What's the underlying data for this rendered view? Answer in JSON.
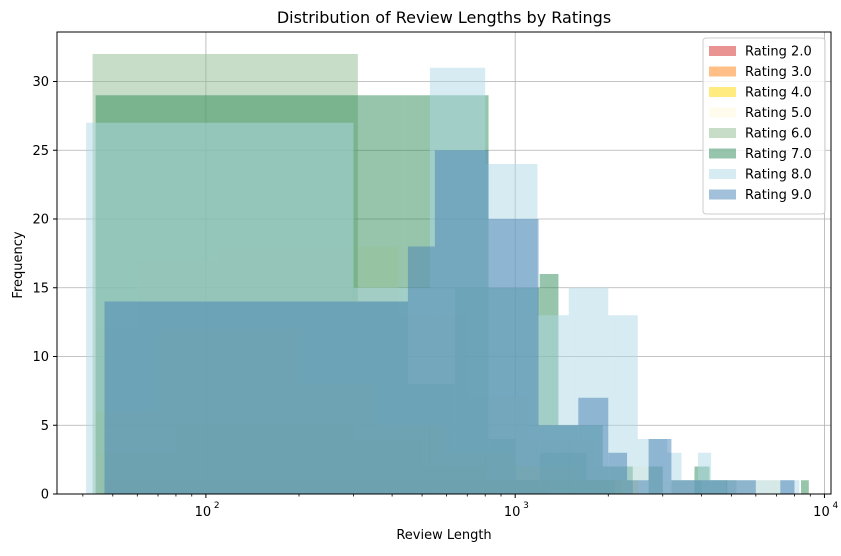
{
  "chart_data": {
    "type": "bar",
    "title": "Distribution of Review Lengths by Ratings",
    "xlabel": "Review Length",
    "ylabel": "Frequency",
    "xscale": "log",
    "xlim": [
      33,
      10500
    ],
    "ylim": [
      0,
      33.6
    ],
    "grid": true,
    "legend_position": "top-right",
    "x_ticks": [
      {
        "value": 100,
        "base": "10",
        "exp": "2"
      },
      {
        "value": 1000,
        "base": "10",
        "exp": "3"
      },
      {
        "value": 10000,
        "base": "10",
        "exp": "4"
      }
    ],
    "y_ticks": [
      0,
      5,
      10,
      15,
      20,
      25,
      30
    ],
    "series": [
      {
        "name": "Rating 2.0",
        "color": "#d62728",
        "alpha": 0.5,
        "bins": [
          [
            46,
            120,
            1
          ],
          [
            120,
            300,
            1
          ],
          [
            300,
            800,
            1
          ],
          [
            800,
            1300,
            1
          ]
        ]
      },
      {
        "name": "Rating 3.0",
        "color": "#ff7f0e",
        "alpha": 0.5,
        "bins": [
          [
            45,
            80,
            3
          ],
          [
            80,
            150,
            5
          ],
          [
            150,
            300,
            5
          ],
          [
            300,
            500,
            4
          ],
          [
            500,
            800,
            2
          ],
          [
            800,
            1300,
            1
          ],
          [
            1300,
            2200,
            1
          ]
        ]
      },
      {
        "name": "Rating 4.0",
        "color": "#ffd700",
        "alpha": 0.5,
        "bins": [
          [
            44,
            70,
            6
          ],
          [
            70,
            120,
            12
          ],
          [
            120,
            200,
            12
          ],
          [
            200,
            350,
            8
          ],
          [
            350,
            600,
            5
          ],
          [
            600,
            1000,
            3
          ],
          [
            1000,
            1600,
            2
          ],
          [
            1600,
            2500,
            1
          ]
        ]
      },
      {
        "name": "Rating 5.0",
        "color": "#fff8dc",
        "alpha": 0.5,
        "bins": [
          [
            44,
            60,
            12
          ],
          [
            60,
            110,
            17
          ],
          [
            110,
            190,
            18
          ],
          [
            190,
            420,
            18
          ],
          [
            420,
            700,
            13
          ],
          [
            700,
            1100,
            7
          ],
          [
            1100,
            1800,
            4
          ],
          [
            1800,
            3000,
            2
          ],
          [
            3000,
            5000,
            1
          ],
          [
            5000,
            7000,
            1
          ],
          [
            6800,
            7300,
            1
          ]
        ]
      },
      {
        "name": "Rating 6.0",
        "color": "#8fbc8f",
        "alpha": 0.5,
        "bins": [
          [
            43,
            310,
            32
          ],
          [
            310,
            450,
            14
          ],
          [
            450,
            640,
            8
          ],
          [
            640,
            820,
            15
          ],
          [
            820,
            1000,
            4
          ],
          [
            1000,
            1200,
            1
          ],
          [
            1200,
            1700,
            3
          ],
          [
            1700,
            2100,
            1
          ],
          [
            3200,
            4000,
            1
          ],
          [
            4800,
            5200,
            1
          ]
        ]
      },
      {
        "name": "Rating 7.0",
        "color": "#2e8b57",
        "alpha": 0.5,
        "bins": [
          [
            44,
            440,
            29
          ],
          [
            440,
            820,
            29
          ],
          [
            820,
            1200,
            15
          ],
          [
            1200,
            1380,
            16
          ],
          [
            1380,
            1920,
            5
          ],
          [
            1920,
            2400,
            2
          ],
          [
            2700,
            3000,
            2
          ],
          [
            3800,
            4250,
            2
          ],
          [
            4250,
            4850,
            1
          ],
          [
            8400,
            8900,
            1
          ]
        ]
      },
      {
        "name": "Rating 8.0",
        "color": "#add8e6",
        "alpha": 0.5,
        "bins": [
          [
            41,
            300,
            27
          ],
          [
            300,
            530,
            15
          ],
          [
            530,
            800,
            31
          ],
          [
            800,
            1180,
            24
          ],
          [
            1180,
            1490,
            13
          ],
          [
            1490,
            2000,
            15
          ],
          [
            2000,
            2490,
            13
          ],
          [
            2490,
            3100,
            4
          ],
          [
            3100,
            3450,
            3
          ],
          [
            3450,
            3900,
            1
          ],
          [
            3900,
            4300,
            3
          ],
          [
            4300,
            5200,
            1
          ],
          [
            5200,
            5900,
            1
          ],
          [
            5900,
            7000,
            1
          ],
          [
            7000,
            7600,
            1
          ],
          [
            7600,
            8300,
            1
          ]
        ]
      },
      {
        "name": "Rating 9.0",
        "color": "#4682b4",
        "alpha": 0.5,
        "bins": [
          [
            47,
            450,
            14
          ],
          [
            450,
            550,
            18
          ],
          [
            550,
            820,
            25
          ],
          [
            820,
            1190,
            20
          ],
          [
            1190,
            1600,
            5
          ],
          [
            1600,
            2000,
            7
          ],
          [
            2000,
            2300,
            3
          ],
          [
            2300,
            2700,
            1
          ],
          [
            2700,
            3200,
            4
          ],
          [
            3200,
            3700,
            1
          ],
          [
            3700,
            4300,
            1
          ],
          [
            4300,
            5200,
            1
          ],
          [
            5200,
            6000,
            1
          ],
          [
            7200,
            8000,
            1
          ]
        ]
      }
    ]
  }
}
